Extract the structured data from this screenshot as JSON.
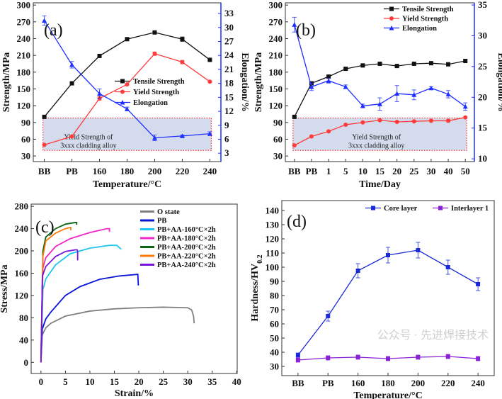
{
  "chart_data": [
    {
      "panel": "(a)",
      "type": "line",
      "xlabel": "Temperature/°C",
      "ylabel": "Strength/MPa",
      "y2label": "Elongation/%",
      "categories": [
        "BB",
        "PB",
        "160",
        "180",
        "200",
        "220",
        "240"
      ],
      "yticks": [
        30,
        60,
        90,
        120,
        150,
        180,
        210,
        240,
        270,
        300
      ],
      "y2ticks": [
        3,
        6,
        9,
        12,
        15,
        18,
        21,
        24,
        27,
        30,
        33
      ],
      "ylim": [
        20,
        304
      ],
      "y2lim": [
        1.2,
        35.3
      ],
      "series": [
        {
          "name": "Tensile Strength",
          "axis": "left",
          "color": "#111111",
          "marker": "square",
          "values": [
            100,
            160,
            209,
            239,
            251,
            239,
            202
          ],
          "errors": [
            1,
            1,
            2,
            1,
            2,
            4,
            1
          ]
        },
        {
          "name": "Yield Strength",
          "axis": "left",
          "color": "#ff3b3b",
          "marker": "circle",
          "values": [
            50,
            65,
            133,
            158,
            213,
            198,
            163
          ],
          "errors": [
            1,
            1,
            3,
            1,
            3,
            3,
            1
          ]
        },
        {
          "name": "Elongation",
          "axis": "right",
          "color": "#1f2fff",
          "marker": "triangle",
          "values": [
            31.5,
            22,
            15.8,
            12.5,
            6.3,
            6.7,
            7.2
          ],
          "errors": [
            1,
            0.7,
            1,
            0.4,
            0.6,
            0.2,
            0.4
          ]
        }
      ],
      "band": {
        "from": 40,
        "to": 98,
        "text": [
          "Yield Strength of",
          "3xxx cladding alloy"
        ]
      },
      "legend": "center-right"
    },
    {
      "panel": "(b)",
      "type": "line",
      "xlabel": "Time/Day",
      "ylabel": "Strength/MPa",
      "y2label": "Elongation/%",
      "categories": [
        "BB",
        "PB",
        "1",
        "5",
        "10",
        "15",
        "20",
        "25",
        "30",
        "40",
        "50"
      ],
      "yticks": [
        30,
        60,
        90,
        120,
        150,
        180,
        210,
        240,
        270,
        300
      ],
      "y2ticks": [
        10,
        15,
        20,
        25,
        30,
        35
      ],
      "ylim": [
        20,
        304
      ],
      "y2lim": [
        9.55,
        35.35
      ],
      "series": [
        {
          "name": "Tensile Strength",
          "axis": "left",
          "color": "#111111",
          "marker": "square",
          "values": [
            100,
            160,
            172,
            186,
            192,
            195,
            191,
            195,
            196,
            194,
            200
          ],
          "errors": [
            1,
            1,
            1,
            1,
            1,
            1,
            1,
            1,
            1,
            2,
            2
          ]
        },
        {
          "name": "Yield Strength",
          "axis": "left",
          "color": "#ff3b3b",
          "marker": "circle",
          "values": [
            49,
            65,
            74,
            86,
            90,
            94,
            91,
            92,
            93,
            93,
            99
          ],
          "errors": [
            1,
            1,
            1,
            1,
            1,
            1,
            1,
            1,
            1,
            2,
            1
          ]
        },
        {
          "name": "Elongation",
          "axis": "right",
          "color": "#1f2fff",
          "marker": "triangle",
          "values": [
            31.8,
            21.7,
            22.7,
            21.7,
            18.6,
            18.9,
            20.6,
            20.4,
            21.5,
            20.5,
            18.5
          ],
          "errors": [
            1.2,
            0.6,
            0.4,
            0.3,
            0.3,
            1,
            1.3,
            0.8,
            0.2,
            0.6,
            0.6
          ]
        }
      ],
      "band": {
        "from": 40,
        "to": 98,
        "text": [
          "Yield Strength of",
          "3xxx cladding alloy"
        ]
      },
      "legend": "top-right"
    },
    {
      "panel": "(c)",
      "type": "line",
      "xlabel": "Strain/%",
      "ylabel": "Stress/MPa",
      "xticks": [
        0,
        5,
        10,
        15,
        20,
        25,
        30,
        35,
        40
      ],
      "yticks": [
        0,
        40,
        80,
        120,
        160,
        200,
        240,
        280
      ],
      "xlim": [
        -2,
        40.1
      ],
      "ylim": [
        -20,
        284
      ],
      "series": [
        {
          "name": "O state",
          "color": "#808080",
          "x": [
            0,
            0.2,
            1,
            2,
            5,
            10,
            15,
            20,
            25,
            30,
            30.8,
            31.2,
            31.3
          ],
          "y": [
            0,
            48,
            62,
            70,
            83,
            92,
            96,
            98,
            99,
            98,
            94,
            82,
            70
          ]
        },
        {
          "name": "PB",
          "color": "#0a14d8",
          "x": [
            0,
            0.3,
            1,
            2,
            5,
            8,
            12,
            16,
            19.8,
            19.9
          ],
          "y": [
            0,
            60,
            78,
            90,
            120,
            136,
            149,
            155,
            158,
            138
          ]
        },
        {
          "name": "PB+AA-160°C×2h",
          "color": "#1ec8f0",
          "x": [
            0,
            0.4,
            1,
            3,
            6,
            10,
            14,
            15.5,
            16.4
          ],
          "y": [
            0,
            130,
            150,
            175,
            195,
            205,
            210,
            210,
            203
          ]
        },
        {
          "name": "PB+AA-180°C×2h",
          "color": "#f028c8",
          "x": [
            0,
            0.4,
            1,
            3,
            6,
            10,
            13.5,
            14,
            14
          ],
          "y": [
            0,
            170,
            188,
            208,
            222,
            233,
            240,
            240,
            234
          ]
        },
        {
          "name": "PB+AA-200°C×2h",
          "color": "#0a6414",
          "x": [
            0,
            0.4,
            1,
            3,
            5,
            7,
            7.3,
            7.3
          ],
          "y": [
            0,
            200,
            225,
            240,
            248,
            251,
            251,
            247
          ]
        },
        {
          "name": "PB+AA-220°C×2h",
          "color": "#ff7a0a",
          "x": [
            0,
            0.4,
            1,
            3,
            5,
            6,
            6.1,
            6.1
          ],
          "y": [
            0,
            190,
            218,
            232,
            240,
            242,
            242,
            237
          ]
        },
        {
          "name": "PB+AA-240°C×2h",
          "color": "#7a14d8",
          "x": [
            0,
            0.3,
            1,
            3,
            5,
            7,
            7.4,
            7.5,
            7.5
          ],
          "y": [
            0,
            155,
            172,
            190,
            199,
            202,
            202,
            200,
            183
          ]
        }
      ],
      "legend": "top-right"
    },
    {
      "panel": "(d)",
      "type": "line",
      "xlabel": "Temperature/°C",
      "ylabel": "Hardness/HV",
      "ylabel_sub": "0.2",
      "categories": [
        "BB",
        "PB",
        "160",
        "180",
        "200",
        "220",
        "240"
      ],
      "yticks": [
        30,
        40,
        50,
        60,
        70,
        80,
        90,
        100,
        110,
        120,
        130,
        140
      ],
      "ylim": [
        23.5,
        147
      ],
      "series": [
        {
          "name": "Core layer",
          "color": "#1a2ad6",
          "marker": "square",
          "values": [
            38,
            65.5,
            97.5,
            108.5,
            112,
            100,
            88
          ],
          "errors": [
            1.5,
            3.5,
            5,
            5.5,
            5.5,
            5,
            4.5
          ]
        },
        {
          "name": "Interlayer 1",
          "color": "#8a20d8",
          "marker": "square",
          "values": [
            34.5,
            36,
            36.5,
            35.5,
            36.5,
            37,
            35.5
          ],
          "errors": [
            1.5,
            1.5,
            1.5,
            1.5,
            1.5,
            1.5,
            1.5
          ]
        }
      ],
      "legend": "top"
    }
  ],
  "watermark": "公众号 · 先进焊接技术"
}
